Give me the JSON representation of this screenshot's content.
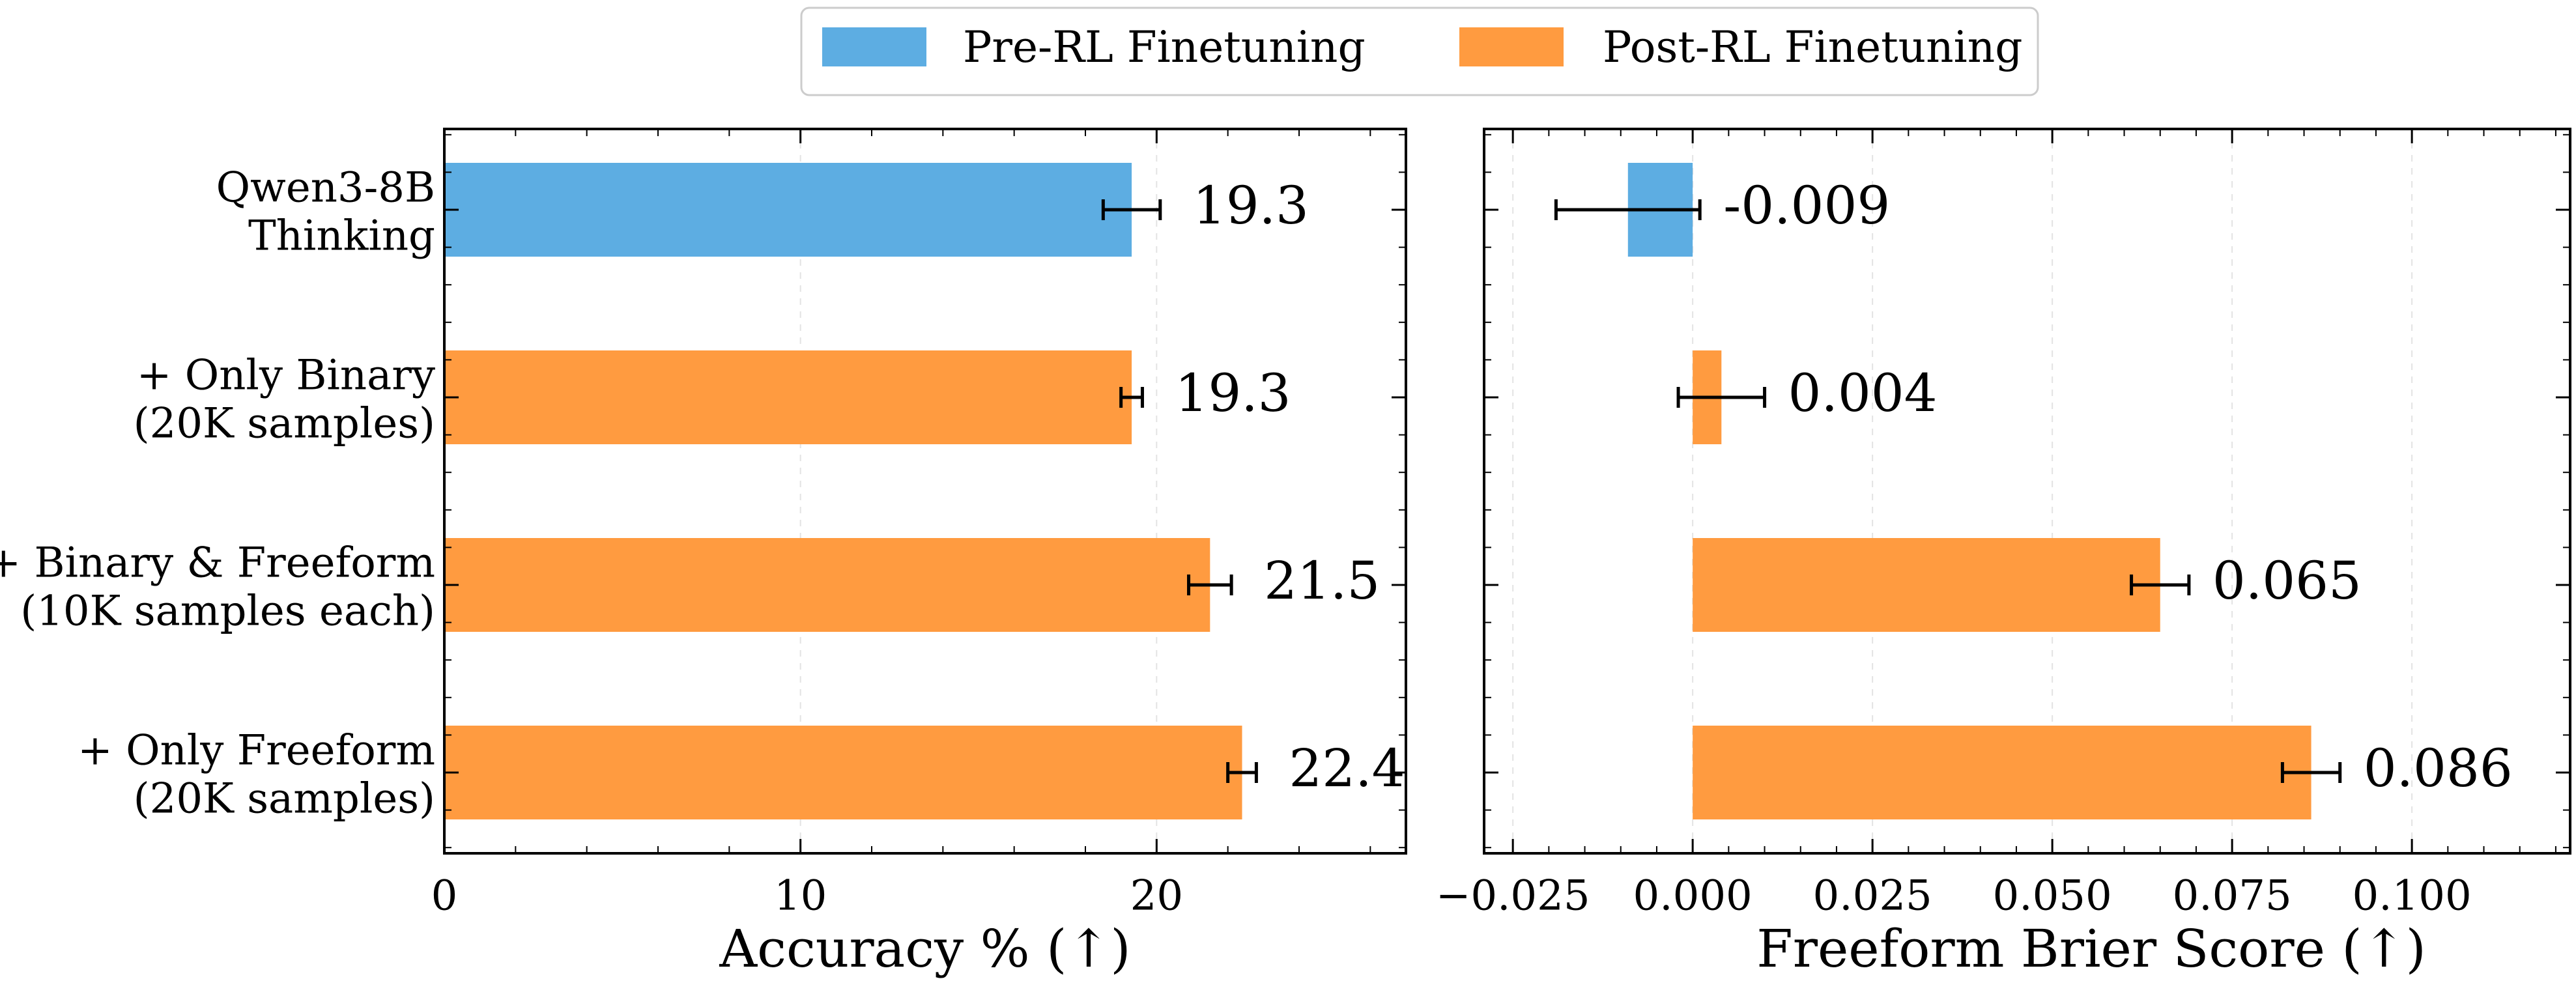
{
  "legend": {
    "items": [
      {
        "label": "Pre-RL Finetuning",
        "color": "#5DADE2"
      },
      {
        "label": "Post-RL Finetuning",
        "color": "#FF9B40"
      }
    ]
  },
  "colors": {
    "pre": "#5DADE2",
    "post": "#FF9B40",
    "error_bar": "#000000",
    "grid": "#e3e3e3"
  },
  "categories": [
    {
      "lines": [
        "Qwen3-8B",
        "Thinking"
      ],
      "group": "pre"
    },
    {
      "lines": [
        "+ Only Binary",
        "(20K samples)"
      ],
      "group": "post"
    },
    {
      "lines": [
        "+ Binary & Freeform",
        "(10K samples each)"
      ],
      "group": "post"
    },
    {
      "lines": [
        "+ Only Freeform",
        "(20K samples)"
      ],
      "group": "post"
    }
  ],
  "chart_data": [
    {
      "type": "bar",
      "orientation": "horizontal",
      "xlabel": "Accuracy % (↑)",
      "xlim": [
        0,
        27
      ],
      "xticks": [
        0,
        10,
        20
      ],
      "tick_labels": [
        "0",
        "10",
        "20"
      ],
      "values": [
        19.3,
        19.3,
        21.5,
        22.4
      ],
      "errors": [
        0.8,
        0.3,
        0.6,
        0.4
      ],
      "labels": [
        "19.3",
        "19.3",
        "21.5",
        "22.4"
      ]
    },
    {
      "type": "bar",
      "orientation": "horizontal",
      "xlabel": "Freeform Brier Score (↑)",
      "xlim": [
        -0.029,
        0.122
      ],
      "xticks": [
        -0.025,
        0.0,
        0.025,
        0.05,
        0.075,
        0.1
      ],
      "tick_labels": [
        "−0.025",
        "0.000",
        "0.025",
        "0.050",
        "0.075",
        "0.100"
      ],
      "values": [
        -0.009,
        0.004,
        0.065,
        0.086
      ],
      "errors": [
        0.01,
        0.006,
        0.004,
        0.004
      ],
      "labels": [
        "-0.009",
        "0.004",
        "0.065",
        "0.086"
      ]
    }
  ]
}
